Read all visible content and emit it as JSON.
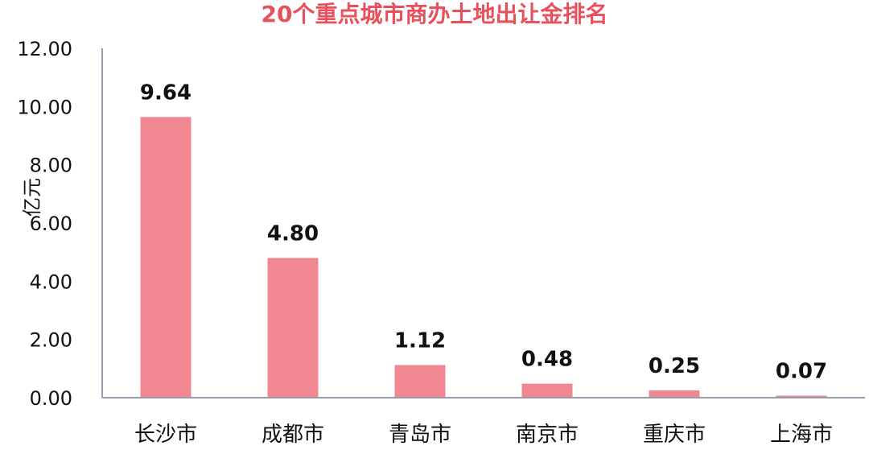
{
  "chart_data": {
    "type": "bar",
    "title": "20个重点城市商办土地出让金排名",
    "ylabel": "亿元",
    "xlabel": "",
    "categories": [
      "长沙市",
      "成都市",
      "青岛市",
      "南京市",
      "重庆市",
      "上海市"
    ],
    "values": [
      9.64,
      4.8,
      1.12,
      0.48,
      0.25,
      0.07
    ],
    "data_labels": [
      "9.64",
      "4.80",
      "1.12",
      "0.48",
      "0.25",
      "0.07"
    ],
    "ylim": [
      0,
      12
    ],
    "yticks": [
      "0.00",
      "2.00",
      "4.00",
      "6.00",
      "8.00",
      "10.00",
      "12.00"
    ],
    "grid": false,
    "legend": "none",
    "bar_color": "#f08791",
    "title_color": "#e8505b",
    "axis_color": "#9a9aaa"
  }
}
